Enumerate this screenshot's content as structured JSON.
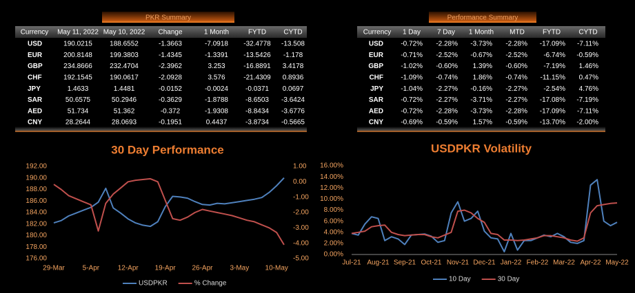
{
  "pkr_summary": {
    "title": "PKR Summary",
    "columns": [
      "Currency",
      "May 11, 2022",
      "May 10, 2022",
      "Change",
      "1 Month",
      "FYTD",
      "CYTD"
    ],
    "rows": [
      [
        "USD",
        "190.0215",
        "188.6552",
        "-1.3663",
        "-7.0918",
        "-32.4778",
        "-13.508"
      ],
      [
        "EUR",
        "200.8148",
        "199.3803",
        "-1.4345",
        "-1.3391",
        "-13.5426",
        "-1.178"
      ],
      [
        "GBP",
        "234.8666",
        "232.4704",
        "-2.3962",
        "3.253",
        "-16.8891",
        "3.4178"
      ],
      [
        "CHF",
        "192.1545",
        "190.0617",
        "-2.0928",
        "3.576",
        "-21.4309",
        "0.8936"
      ],
      [
        "JPY",
        "1.4633",
        "1.4481",
        "-0.0152",
        "-0.0024",
        "-0.0371",
        "0.0697"
      ],
      [
        "SAR",
        "50.6575",
        "50.2946",
        "-0.3629",
        "-1.8788",
        "-8.6503",
        "-3.6424"
      ],
      [
        "AED",
        "51.734",
        "51.362",
        "-0.372",
        "-1.9308",
        "-8.8434",
        "-3.6776"
      ],
      [
        "CNY",
        "28.2644",
        "28.0693",
        "-0.1951",
        "0.4437",
        "-3.8734",
        "-0.5665"
      ]
    ]
  },
  "performance_summary": {
    "title": "Performance Summary",
    "columns": [
      "Currency",
      "1 Day",
      "7 Day",
      "1 Month",
      "MTD",
      "FYTD",
      "CYTD"
    ],
    "rows": [
      [
        "USD",
        "-0.72%",
        "-2.28%",
        "-3.73%",
        "-2.28%",
        "-17.09%",
        "-7.11%"
      ],
      [
        "EUR",
        "-0.71%",
        "-2.52%",
        "-0.67%",
        "-2.52%",
        "-6.74%",
        "-0.59%"
      ],
      [
        "GBP",
        "-1.02%",
        "-0.60%",
        "1.39%",
        "-0.60%",
        "-7.19%",
        "1.46%"
      ],
      [
        "CHF",
        "-1.09%",
        "-0.74%",
        "1.86%",
        "-0.74%",
        "-11.15%",
        "0.47%"
      ],
      [
        "JPY",
        "-1.04%",
        "-2.27%",
        "-0.16%",
        "-2.27%",
        "-2.54%",
        "4.76%"
      ],
      [
        "SAR",
        "-0.72%",
        "-2.27%",
        "-3.71%",
        "-2.27%",
        "-17.08%",
        "-7.19%"
      ],
      [
        "AED",
        "-0.72%",
        "-2.28%",
        "-3.73%",
        "-2.28%",
        "-17.09%",
        "-7.11%"
      ],
      [
        "CNY",
        "-0.69%",
        "-0.59%",
        "1.57%",
        "-0.59%",
        "-13.70%",
        "-2.00%"
      ]
    ]
  },
  "positive_color": "#5fd35f",
  "negative_color": "#ff2a2a",
  "chart_data": [
    {
      "type": "line",
      "title": "30 Day Performance",
      "categories": [
        "29-Mar",
        null,
        null,
        null,
        null,
        "5-Apr",
        null,
        null,
        null,
        null,
        "12-Apr",
        null,
        null,
        null,
        null,
        "19-Apr",
        null,
        null,
        null,
        null,
        "26-Apr",
        null,
        null,
        null,
        null,
        "3-May",
        null,
        null,
        null,
        null,
        "10-May",
        null
      ],
      "series": [
        {
          "name": "USDPKR",
          "color": "#4f81bd",
          "values": [
            182.2,
            182.6,
            183.4,
            183.9,
            184.4,
            184.9,
            185.8,
            188.2,
            184.8,
            183.9,
            182.9,
            182.2,
            181.8,
            181.6,
            182.4,
            185.0,
            186.8,
            186.7,
            186.5,
            185.9,
            185.4,
            185.3,
            185.6,
            185.5,
            185.7,
            185.9,
            186.1,
            186.3,
            186.6,
            187.5,
            188.66,
            190.02
          ]
        },
        {
          "name": "% Change",
          "color": "#c0504d",
          "axis": "y2",
          "values": [
            -0.17,
            -0.5,
            -0.9,
            -1.1,
            -1.3,
            -1.5,
            -3.2,
            -1.4,
            -0.8,
            -0.4,
            0.0,
            0.1,
            0.15,
            0.2,
            0.0,
            -1.2,
            -2.4,
            -2.5,
            -2.3,
            -2.0,
            -1.8,
            -1.9,
            -2.0,
            -2.1,
            -2.2,
            -2.35,
            -2.5,
            -2.6,
            -2.8,
            -3.0,
            -3.3,
            -4.1
          ]
        }
      ],
      "ylim": [
        176,
        192
      ],
      "yticks": [
        {
          "value": 176,
          "label": "176.00"
        },
        {
          "value": 178,
          "label": "178.00"
        },
        {
          "value": 180,
          "label": "180.00"
        },
        {
          "value": 182,
          "label": "182.00"
        },
        {
          "value": 184,
          "label": "184.00"
        },
        {
          "value": 186,
          "label": "186.00"
        },
        {
          "value": 188,
          "label": "188.00"
        },
        {
          "value": 190,
          "label": "190.00"
        },
        {
          "value": 192,
          "label": "192.00"
        }
      ],
      "y2lim": [
        -5,
        1
      ],
      "y2ticks": [
        {
          "value": 1,
          "label": "1.00"
        },
        {
          "value": 0,
          "label": "0.00"
        },
        {
          "value": -1,
          "label": "-1.00"
        },
        {
          "value": -2,
          "label": "-2.00"
        },
        {
          "value": -3,
          "label": "-3.00"
        },
        {
          "value": -4,
          "label": "-4.00"
        },
        {
          "value": -5,
          "label": "-5.00"
        }
      ],
      "legend": "bottom",
      "grid": false
    },
    {
      "type": "line",
      "title": "USDPKR Volatility",
      "categories": [
        "Jul-21",
        null,
        null,
        null,
        "Aug-21",
        null,
        null,
        null,
        "Sep-21",
        null,
        null,
        null,
        "Oct-21",
        null,
        null,
        null,
        "Nov-21",
        null,
        null,
        null,
        "Dec-21",
        null,
        null,
        null,
        "Jan-22",
        null,
        null,
        null,
        "Feb-22",
        null,
        null,
        null,
        "Mar-22",
        null,
        null,
        null,
        "Apr-22",
        null,
        null,
        null,
        "May-22"
      ],
      "series": [
        {
          "name": "10 Day",
          "color": "#4f81bd",
          "values": [
            3.8,
            3.5,
            5.5,
            6.8,
            6.5,
            2.5,
            3.2,
            2.8,
            1.8,
            3.5,
            3.6,
            3.7,
            3.3,
            2.2,
            2.5,
            7.5,
            9.5,
            6.0,
            6.5,
            7.8,
            4.2,
            3.0,
            2.8,
            0.5,
            3.8,
            0.8,
            2.5,
            2.5,
            3.0,
            3.5,
            3.2,
            3.8,
            3.2,
            2.2,
            2.0,
            2.5,
            12.5,
            13.5,
            6.0,
            5.2,
            5.8
          ]
        },
        {
          "name": "30 Day",
          "color": "#c0504d",
          "values": [
            3.8,
            4.0,
            4.2,
            5.0,
            5.2,
            5.3,
            4.0,
            3.6,
            3.4,
            3.5,
            3.6,
            3.6,
            3.2,
            3.0,
            3.5,
            4.0,
            7.8,
            8.0,
            7.5,
            6.5,
            5.8,
            3.8,
            3.6,
            2.6,
            2.6,
            2.5,
            2.6,
            2.8,
            3.0,
            3.4,
            3.4,
            3.2,
            3.0,
            2.6,
            2.4,
            3.0,
            7.5,
            8.8,
            9.0,
            9.2,
            9.3
          ]
        }
      ],
      "ylim": [
        0,
        16
      ],
      "yticks": [
        {
          "value": 0,
          "label": "0.00%"
        },
        {
          "value": 2,
          "label": "2.00%"
        },
        {
          "value": 4,
          "label": "4.00%"
        },
        {
          "value": 6,
          "label": "6.00%"
        },
        {
          "value": 8,
          "label": "8.00%"
        },
        {
          "value": 10,
          "label": "10.00%"
        },
        {
          "value": 12,
          "label": "12.00%"
        },
        {
          "value": 14,
          "label": "14.00%"
        },
        {
          "value": 16,
          "label": "16.00%"
        }
      ],
      "legend": "bottom",
      "grid": false
    }
  ]
}
